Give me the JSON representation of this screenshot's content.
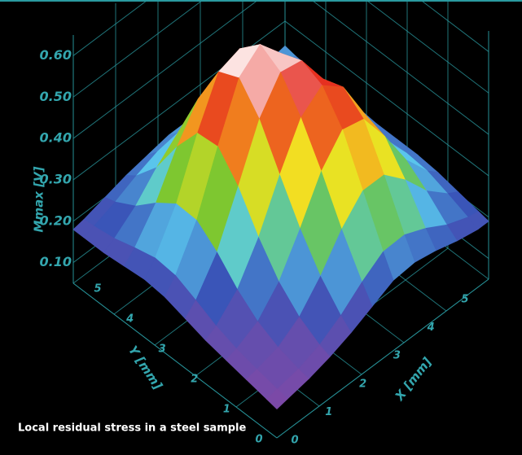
{
  "chart_data": {
    "type": "surface",
    "caption": "Local residual stress in a steel sample",
    "xlabel": "X [mm]",
    "ylabel": "Y [mm]",
    "zlabel": "Mmax [V]",
    "x": [
      0,
      0.5,
      1,
      1.5,
      2,
      2.5,
      3,
      3.5,
      4,
      4.5,
      5
    ],
    "y": [
      0,
      0.5,
      1,
      1.5,
      2,
      2.5,
      3,
      3.5,
      4,
      4.5,
      5
    ],
    "z": [
      [
        0.12,
        0.13,
        0.14,
        0.16,
        0.18,
        0.21,
        0.23,
        0.22,
        0.21,
        0.19,
        0.19
      ],
      [
        0.13,
        0.14,
        0.15,
        0.19,
        0.24,
        0.31,
        0.33,
        0.31,
        0.26,
        0.22,
        0.2
      ],
      [
        0.14,
        0.15,
        0.18,
        0.24,
        0.33,
        0.42,
        0.46,
        0.42,
        0.33,
        0.25,
        0.21
      ],
      [
        0.15,
        0.17,
        0.22,
        0.31,
        0.43,
        0.53,
        0.55,
        0.48,
        0.36,
        0.27,
        0.22
      ],
      [
        0.16,
        0.2,
        0.29,
        0.41,
        0.53,
        0.59,
        0.57,
        0.47,
        0.35,
        0.26,
        0.22
      ],
      [
        0.18,
        0.24,
        0.36,
        0.51,
        0.62,
        0.63,
        0.54,
        0.42,
        0.31,
        0.25,
        0.22
      ],
      [
        0.19,
        0.26,
        0.39,
        0.55,
        0.64,
        0.6,
        0.48,
        0.35,
        0.27,
        0.23,
        0.22
      ],
      [
        0.19,
        0.25,
        0.36,
        0.49,
        0.55,
        0.51,
        0.4,
        0.3,
        0.25,
        0.23,
        0.23
      ],
      [
        0.18,
        0.22,
        0.29,
        0.37,
        0.41,
        0.39,
        0.32,
        0.26,
        0.23,
        0.23,
        0.23
      ],
      [
        0.18,
        0.2,
        0.23,
        0.27,
        0.29,
        0.28,
        0.26,
        0.24,
        0.23,
        0.23,
        0.23
      ],
      [
        0.18,
        0.19,
        0.21,
        0.22,
        0.23,
        0.24,
        0.23,
        0.23,
        0.23,
        0.23,
        0.24
      ]
    ],
    "xlim": [
      0,
      5
    ],
    "ylim": [
      0,
      5
    ],
    "zlim": [
      0.05,
      0.65
    ],
    "xticks": [
      0,
      1,
      2,
      3,
      4,
      5
    ],
    "yticks": [
      0,
      1,
      2,
      3,
      4,
      5
    ],
    "zticks": [
      {
        "value": 0.1,
        "label": "0.10"
      },
      {
        "value": 0.2,
        "label": "0.20"
      },
      {
        "value": 0.3,
        "label": "0.30"
      },
      {
        "value": 0.4,
        "label": "0.40"
      },
      {
        "value": 0.5,
        "label": "0.50"
      },
      {
        "value": 0.6,
        "label": "0.60"
      }
    ],
    "colorscale": [
      "#8e3c9e",
      "#7a4aa8",
      "#3a55b8",
      "#5ccdf0",
      "#6cc232",
      "#f2e422",
      "#f28a1e",
      "#e52a20",
      "#ffffff"
    ],
    "grid": true
  }
}
